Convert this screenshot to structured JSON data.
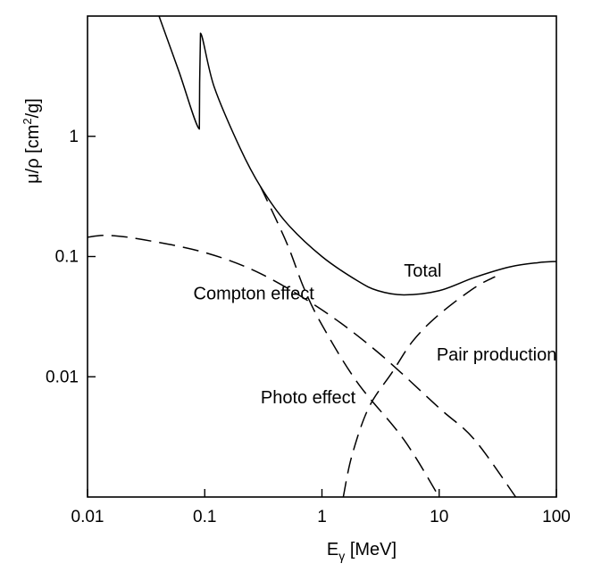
{
  "chart_data": {
    "type": "line",
    "x_scale": "log",
    "y_scale": "log",
    "xlim": [
      0.01,
      100
    ],
    "ylim": [
      0.001,
      10
    ],
    "x_ticks": [
      {
        "value": 0.01,
        "label": "0.01"
      },
      {
        "value": 0.1,
        "label": "0.1"
      },
      {
        "value": 1,
        "label": "1"
      },
      {
        "value": 10,
        "label": "10"
      },
      {
        "value": 100,
        "label": "100"
      }
    ],
    "y_ticks": [
      {
        "value": 0.01,
        "label": "0.01"
      },
      {
        "value": 0.1,
        "label": "0.1"
      },
      {
        "value": 1,
        "label": "1"
      }
    ],
    "xlabel": {
      "main": "E",
      "sub": "γ",
      "unit": " [MeV]"
    },
    "ylabel": {
      "pre": "μ/ρ  [cm",
      "sup": "2",
      "post": "/g]"
    },
    "grid": false,
    "legend": "none",
    "series": [
      {
        "name": "Total",
        "style": "solid",
        "points": [
          [
            0.04,
            10.5
          ],
          [
            0.06,
            3.5
          ],
          [
            0.09,
            1.15
          ],
          [
            0.0905,
            2.8
          ],
          [
            0.092,
            7.2
          ],
          [
            0.12,
            2.6
          ],
          [
            0.2,
            0.8
          ],
          [
            0.3,
            0.38
          ],
          [
            0.5,
            0.19
          ],
          [
            1,
            0.1
          ],
          [
            2,
            0.063
          ],
          [
            3,
            0.052
          ],
          [
            5,
            0.048
          ],
          [
            10,
            0.052
          ],
          [
            20,
            0.067
          ],
          [
            40,
            0.082
          ],
          [
            70,
            0.089
          ],
          [
            100,
            0.091
          ]
        ]
      },
      {
        "name": "Compton effect",
        "style": "dashed",
        "points": [
          [
            0.01,
            0.145
          ],
          [
            0.015,
            0.15
          ],
          [
            0.03,
            0.138
          ],
          [
            0.1,
            0.108
          ],
          [
            0.3,
            0.072
          ],
          [
            1,
            0.036
          ],
          [
            3,
            0.016
          ],
          [
            10,
            0.0055
          ],
          [
            20,
            0.003
          ],
          [
            45,
            0.001
          ]
        ]
      },
      {
        "name": "Photo effect",
        "style": "dashed",
        "points": [
          [
            0.3,
            0.38
          ],
          [
            0.5,
            0.13
          ],
          [
            0.7,
            0.055
          ],
          [
            1,
            0.027
          ],
          [
            2,
            0.009
          ],
          [
            5,
            0.003
          ],
          [
            10,
            0.001
          ]
        ]
      },
      {
        "name": "Pair production",
        "style": "dashed",
        "points": [
          [
            1.52,
            0.001
          ],
          [
            1.8,
            0.0022
          ],
          [
            2.5,
            0.0055
          ],
          [
            4,
            0.011
          ],
          [
            6,
            0.02
          ],
          [
            10,
            0.033
          ],
          [
            20,
            0.055
          ],
          [
            30,
            0.068
          ]
        ]
      }
    ],
    "annotations": [
      {
        "text": "Total",
        "x": 5.0,
        "y": 0.068
      },
      {
        "text": "Compton effect",
        "x": 0.08,
        "y": 0.044
      },
      {
        "text": "Photo effect",
        "x": 0.3,
        "y": 0.006
      },
      {
        "text": "Pair production",
        "x": 9.5,
        "y": 0.0137
      }
    ]
  }
}
